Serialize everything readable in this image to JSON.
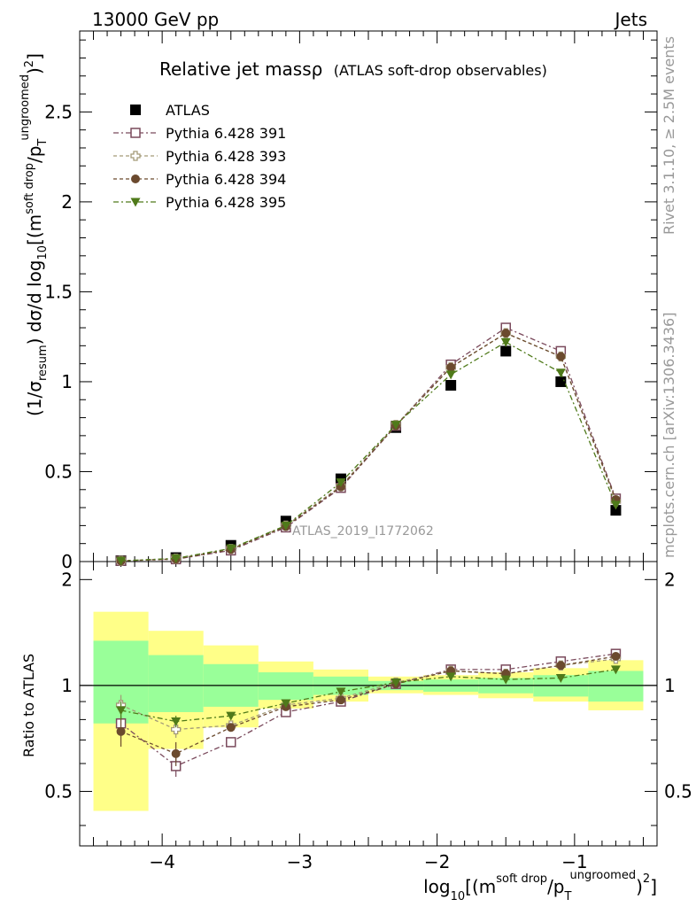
{
  "header": {
    "left": "13000 GeV pp",
    "right": "Jets"
  },
  "side": {
    "rivet": "Rivet 3.1.10, ≥ 2.5M events",
    "mcplots": "mcplots.cern.ch [arXiv:1306.3436]"
  },
  "title": {
    "main": "Relative jet massρ",
    "sub": "(ATLAS soft-drop observables)"
  },
  "watermark": "ATLAS_2019_I1772062",
  "top_ylabel": "(1/σresum) dσ/d log10[(m soft drop/pT ungroomed)2]",
  "bottom_ylabel": "Ratio to ATLAS",
  "xlabel": "log10[(m soft drop/pT ungroomed)2]",
  "colors": {
    "ATLAS": "#000000",
    "391": "#7a4a5c",
    "393": "#a39a78",
    "394": "#6b4a2e",
    "395": "#4f7a1a",
    "band_green": "#99ff99",
    "band_yellow": "#ffff88"
  },
  "chart_data": [
    {
      "type": "scatter",
      "panel": "main",
      "x": [
        -4.3,
        -3.9,
        -3.5,
        -3.1,
        -2.7,
        -2.3,
        -1.9,
        -1.5,
        -1.1,
        -0.7
      ],
      "xlim": [
        -4.6,
        -0.4
      ],
      "ylim": [
        0,
        2.95
      ],
      "yticks": [
        0,
        0.5,
        1,
        1.5,
        2,
        2.5
      ],
      "ytick_labels": [
        "0",
        "0.5",
        "1",
        "1.5",
        "2",
        "2.5"
      ],
      "series": [
        {
          "name": "ATLAS",
          "key": "ATLAS",
          "marker": "square-filled",
          "values": [
            0.005,
            0.022,
            0.09,
            0.225,
            0.46,
            0.745,
            0.98,
            1.17,
            1.0,
            0.285
          ]
        },
        {
          "name": "Pythia 6.428 391",
          "key": "391",
          "marker": "square-open",
          "dash": "6,3,2,3",
          "values": [
            0.004,
            0.013,
            0.062,
            0.19,
            0.41,
            0.755,
            1.095,
            1.3,
            1.17,
            0.35
          ]
        },
        {
          "name": "Pythia 6.428 393",
          "key": "393",
          "marker": "cross-open",
          "dash": "4,3",
          "values": [
            0.0045,
            0.016,
            0.07,
            0.2,
            0.42,
            0.76,
            1.08,
            1.27,
            1.14,
            0.335
          ]
        },
        {
          "name": "Pythia 6.428 394",
          "key": "394",
          "marker": "circle-filled",
          "dash": "4,3",
          "values": [
            0.0037,
            0.014,
            0.067,
            0.195,
            0.415,
            0.755,
            1.08,
            1.27,
            1.14,
            0.345
          ]
        },
        {
          "name": "Pythia 6.428 395",
          "key": "395",
          "marker": "triangle-down-filled",
          "dash": "6,3,2,3",
          "values": [
            0.0042,
            0.018,
            0.073,
            0.2,
            0.44,
            0.76,
            1.04,
            1.22,
            1.05,
            0.315
          ]
        }
      ]
    },
    {
      "type": "scatter",
      "panel": "ratio",
      "x": [
        -4.3,
        -3.9,
        -3.5,
        -3.1,
        -2.7,
        -2.3,
        -1.9,
        -1.5,
        -1.1,
        -0.7
      ],
      "xlim": [
        -4.6,
        -0.4
      ],
      "ylim": [
        0.35,
        2.25
      ],
      "log_y": true,
      "yticks": [
        0.5,
        1,
        2
      ],
      "ytick_labels": [
        "0.5",
        "1",
        "2"
      ],
      "xticks": [
        -4,
        -3,
        -2,
        -1
      ],
      "xtick_labels": [
        "−4",
        "−3",
        "−2",
        "−1"
      ],
      "bin_edges": [
        -4.5,
        -4.1,
        -3.7,
        -3.3,
        -2.9,
        -2.5,
        -2.1,
        -1.7,
        -1.3,
        -0.9,
        -0.5
      ],
      "band_green": {
        "lo": [
          0.78,
          0.84,
          0.87,
          0.91,
          0.94,
          0.97,
          0.96,
          0.95,
          0.93,
          0.9
        ],
        "hi": [
          1.34,
          1.22,
          1.15,
          1.09,
          1.06,
          1.03,
          1.04,
          1.05,
          1.07,
          1.1
        ]
      },
      "band_yellow": {
        "lo": [
          0.44,
          0.66,
          0.76,
          0.86,
          0.9,
          0.95,
          0.94,
          0.92,
          0.9,
          0.85
        ],
        "hi": [
          1.62,
          1.43,
          1.3,
          1.17,
          1.11,
          1.06,
          1.07,
          1.09,
          1.12,
          1.18
        ]
      },
      "series": [
        {
          "name": "Pythia 6.428 391",
          "key": "391",
          "marker": "square-open",
          "dash": "6,3,2,3",
          "values": [
            0.78,
            0.59,
            0.69,
            0.84,
            0.9,
            1.01,
            1.11,
            1.11,
            1.17,
            1.23
          ],
          "err": [
            0.04,
            0.04,
            0.01,
            0.01,
            0.01,
            0.01,
            0.01,
            0.01,
            0.01,
            0.01
          ]
        },
        {
          "name": "Pythia 6.428 393",
          "key": "393",
          "marker": "cross-open",
          "dash": "4,3",
          "values": [
            0.88,
            0.75,
            0.77,
            0.88,
            0.92,
            1.02,
            1.1,
            1.08,
            1.14,
            1.19
          ],
          "err": [
            0.06,
            0.04,
            0.02,
            0.01,
            0.01,
            0.01,
            0.01,
            0.01,
            0.01,
            0.01
          ]
        },
        {
          "name": "Pythia 6.428 394",
          "key": "394",
          "marker": "circle-filled",
          "dash": "4,3",
          "values": [
            0.74,
            0.64,
            0.76,
            0.87,
            0.91,
            1.01,
            1.1,
            1.08,
            1.14,
            1.21
          ],
          "err": [
            0.07,
            0.05,
            0.02,
            0.01,
            0.01,
            0.01,
            0.01,
            0.01,
            0.01,
            0.01
          ]
        },
        {
          "name": "Pythia 6.428 395",
          "key": "395",
          "marker": "triangle-down-filled",
          "dash": "6,3,2,3",
          "values": [
            0.85,
            0.79,
            0.82,
            0.89,
            0.96,
            1.02,
            1.06,
            1.04,
            1.05,
            1.11
          ],
          "err": [
            0.05,
            0.03,
            0.01,
            0.01,
            0.01,
            0.01,
            0.01,
            0.01,
            0.01,
            0.01
          ]
        }
      ]
    }
  ]
}
